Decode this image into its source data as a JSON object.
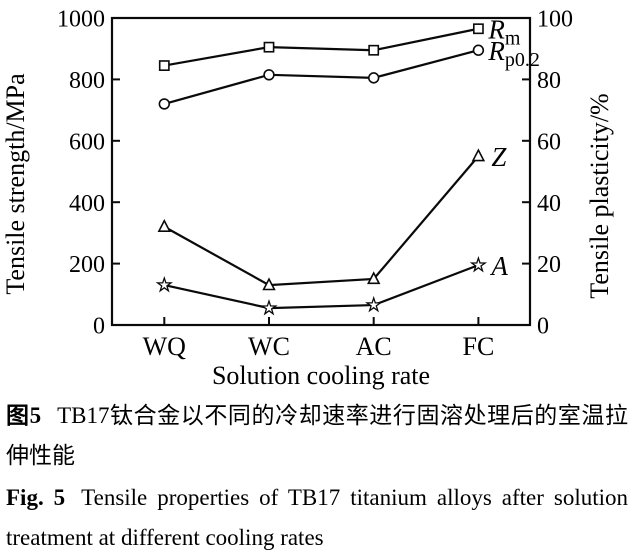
{
  "figure": {
    "caption_zh": {
      "label": "图5",
      "text": "TB17钛合金以不同的冷却速率进行固溶处理后的室温拉伸性能"
    },
    "caption_en": {
      "label": "Fig. 5",
      "text": "Tensile properties of TB17 titanium alloys after solution treatment at different cooling rates"
    }
  },
  "chart_data": {
    "type": "line",
    "title": "",
    "categories": [
      "WQ",
      "WC",
      "AC",
      "FC"
    ],
    "xlabel": "Solution cooling rate",
    "left_axis": {
      "label": "Tensile strength/MPa",
      "lim": [
        0,
        1000
      ],
      "ticks": [
        0,
        200,
        400,
        600,
        800,
        1000
      ]
    },
    "right_axis": {
      "label": "Tensile plasticity/%",
      "lim": [
        0,
        100
      ],
      "ticks": [
        0,
        20,
        40,
        60,
        80,
        100
      ]
    },
    "grid": false,
    "legend_position": "end-of-line labels",
    "line_color": "#0a0a0a",
    "series": [
      {
        "name": "Rm",
        "label_main": "R",
        "label_sub": "m",
        "axis": "left",
        "marker": "square",
        "unit": "MPa",
        "values": [
          845,
          905,
          895,
          965
        ]
      },
      {
        "name": "Rp02",
        "label_main": "R",
        "label_sub": "p0.2",
        "axis": "left",
        "marker": "circle",
        "unit": "MPa",
        "values": [
          720,
          815,
          805,
          895
        ]
      },
      {
        "name": "Z",
        "label_main": "Z",
        "label_sub": "",
        "axis": "right",
        "marker": "triangle",
        "unit": "%",
        "values": [
          32,
          13,
          15,
          55
        ]
      },
      {
        "name": "A",
        "label_main": "A",
        "label_sub": "",
        "axis": "right",
        "marker": "star",
        "unit": "%",
        "values": [
          13,
          5.5,
          6.5,
          19.5
        ]
      }
    ]
  }
}
